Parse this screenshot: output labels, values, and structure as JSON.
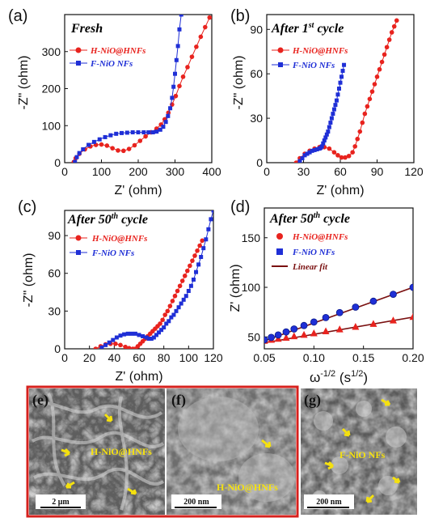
{
  "colors": {
    "red": "#e8231e",
    "blue": "#1f2fd6",
    "fit": "#7a1010",
    "sem_frame": "#d6211d",
    "arrow": "#f5e10f"
  },
  "chart_data": [
    {
      "type": "line",
      "panel_letter": "(a)",
      "condition": "Fresh",
      "ylabel": "-Z\" (ohm)",
      "xlabel": "Z' (ohm)",
      "xlim": [
        0,
        400
      ],
      "ylim": [
        0,
        400
      ],
      "xticks": [
        "0",
        "100",
        "200",
        "300",
        "400"
      ],
      "yticks": [
        "0",
        "100",
        "200",
        "300"
      ],
      "series": [
        {
          "name": "H-NiO@HNFs",
          "color": "red",
          "marker": "circle",
          "points": [
            [
              25,
              2
            ],
            [
              30,
              12
            ],
            [
              40,
              24
            ],
            [
              55,
              36
            ],
            [
              70,
              44
            ],
            [
              85,
              48
            ],
            [
              100,
              49
            ],
            [
              115,
              46
            ],
            [
              130,
              39
            ],
            [
              145,
              33
            ],
            [
              160,
              32
            ],
            [
              175,
              37
            ],
            [
              190,
              47
            ],
            [
              205,
              59
            ],
            [
              220,
              71
            ],
            [
              235,
              82
            ],
            [
              250,
              92
            ],
            [
              262,
              103
            ],
            [
              272,
              117
            ],
            [
              282,
              135
            ],
            [
              292,
              157
            ],
            [
              302,
              180
            ],
            [
              312,
              207
            ],
            [
              322,
              232
            ],
            [
              334,
              258
            ],
            [
              346,
              286
            ],
            [
              358,
              313
            ],
            [
              370,
              340
            ],
            [
              382,
              366
            ],
            [
              394,
              392
            ]
          ]
        },
        {
          "name": "F-NiO NFs",
          "color": "blue",
          "marker": "square",
          "points": [
            [
              28,
              2
            ],
            [
              33,
              15
            ],
            [
              40,
              26
            ],
            [
              50,
              36
            ],
            [
              65,
              48
            ],
            [
              80,
              56
            ],
            [
              95,
              63
            ],
            [
              110,
              69
            ],
            [
              125,
              74
            ],
            [
              140,
              78
            ],
            [
              155,
              80
            ],
            [
              170,
              81
            ],
            [
              185,
              82
            ],
            [
              200,
              82
            ],
            [
              215,
              82
            ],
            [
              228,
              82
            ],
            [
              240,
              82
            ],
            [
              250,
              84
            ],
            [
              260,
              89
            ],
            [
              268,
              97
            ],
            [
              275,
              110
            ],
            [
              281,
              126
            ],
            [
              287,
              147
            ],
            [
              292,
              175
            ],
            [
              296,
              205
            ],
            [
              300,
              240
            ],
            [
              304,
              277
            ],
            [
              308,
              315
            ],
            [
              312,
              360
            ],
            [
              317,
              400
            ]
          ]
        }
      ]
    },
    {
      "type": "line",
      "panel_letter": "(b)",
      "condition_main": "After 1",
      "condition_sup": "st",
      "condition_tail": " cycle",
      "ylabel": "-Z\" (ohm)",
      "xlabel": "Z' (ohm)",
      "xlim": [
        0,
        120
      ],
      "ylim": [
        0,
        100
      ],
      "xticks": [
        "0",
        "30",
        "60",
        "90",
        "120"
      ],
      "yticks": [
        "0",
        "30",
        "60",
        "90"
      ],
      "series": [
        {
          "name": "H-NiO@HNFs",
          "color": "red",
          "marker": "circle",
          "points": [
            [
              24,
              0
            ],
            [
              27,
              3
            ],
            [
              31,
              6
            ],
            [
              35,
              8
            ],
            [
              39,
              9.5
            ],
            [
              43,
              10.5
            ],
            [
              47,
              10.5
            ],
            [
              51,
              9.5
            ],
            [
              55,
              7
            ],
            [
              58,
              5
            ],
            [
              61,
              3.5
            ],
            [
              64,
              3.5
            ],
            [
              67,
              4.5
            ],
            [
              70,
              7
            ],
            [
              72,
              11
            ],
            [
              74,
              16
            ],
            [
              76,
              21
            ],
            [
              78,
              27
            ],
            [
              80,
              33
            ],
            [
              82,
              38
            ],
            [
              84,
              43
            ],
            [
              86,
              48
            ],
            [
              88,
              53
            ],
            [
              90,
              58
            ],
            [
              92,
              63
            ],
            [
              94,
              68
            ],
            [
              96,
              73
            ],
            [
              98,
              78
            ],
            [
              100,
              83
            ],
            [
              102,
              88
            ],
            [
              104,
              92
            ],
            [
              106,
              96
            ]
          ]
        },
        {
          "name": "F-NiO NFs",
          "color": "blue",
          "marker": "square",
          "points": [
            [
              27,
              1
            ],
            [
              29,
              3
            ],
            [
              31,
              5
            ],
            [
              33,
              6
            ],
            [
              35,
              7
            ],
            [
              37,
              8
            ],
            [
              39,
              8.5
            ],
            [
              41,
              9
            ],
            [
              43,
              9.5
            ],
            [
              44,
              10
            ],
            [
              45,
              11
            ],
            [
              46,
              13
            ],
            [
              47,
              15
            ],
            [
              48,
              17
            ],
            [
              49,
              19
            ],
            [
              50,
              21
            ],
            [
              51,
              24
            ],
            [
              52,
              27
            ],
            [
              53,
              30
            ],
            [
              54,
              33
            ],
            [
              55,
              36
            ],
            [
              56,
              39
            ],
            [
              57,
              42
            ],
            [
              58,
              46
            ],
            [
              59,
              50
            ],
            [
              60,
              54
            ],
            [
              61,
              58
            ],
            [
              62,
              62
            ],
            [
              63,
              66
            ]
          ]
        }
      ]
    },
    {
      "type": "line",
      "panel_letter": "(c)",
      "condition_main": "After 50",
      "condition_sup": "th",
      "condition_tail": " cycle",
      "ylabel": "-Z\" (ohm)",
      "xlabel": "Z' (ohm)",
      "xlim": [
        0,
        120
      ],
      "ylim": [
        0,
        110
      ],
      "xticks": [
        "0",
        "20",
        "40",
        "60",
        "80",
        "100",
        "120"
      ],
      "yticks": [
        "0",
        "30",
        "60",
        "90"
      ],
      "series": [
        {
          "name": "H-NiO@HNFs",
          "color": "red",
          "marker": "circle",
          "points": [
            [
              25,
              0
            ],
            [
              29,
              2
            ],
            [
              33,
              3.5
            ],
            [
              37,
              4
            ],
            [
              41,
              4
            ],
            [
              45,
              3
            ],
            [
              49,
              1.5
            ],
            [
              52,
              0.5
            ],
            [
              55,
              0
            ],
            [
              57,
              0
            ],
            [
              59,
              2
            ],
            [
              61,
              4
            ],
            [
              63,
              6
            ],
            [
              65,
              8
            ],
            [
              67,
              10
            ],
            [
              69,
              12
            ],
            [
              71,
              14
            ],
            [
              73,
              16
            ],
            [
              75,
              18
            ],
            [
              77,
              20
            ],
            [
              79,
              23
            ],
            [
              81,
              27
            ],
            [
              83,
              30
            ],
            [
              85,
              34
            ],
            [
              87,
              38
            ],
            [
              89,
              42
            ],
            [
              91,
              46
            ],
            [
              93,
              50
            ],
            [
              95,
              54
            ],
            [
              97,
              58
            ],
            [
              99,
              62
            ],
            [
              101,
              66
            ],
            [
              103,
              70
            ],
            [
              105,
              74
            ],
            [
              107,
              78
            ],
            [
              109,
              82
            ],
            [
              111,
              86
            ]
          ]
        },
        {
          "name": "F-NiO NFs",
          "color": "blue",
          "marker": "square",
          "points": [
            [
              30,
              1
            ],
            [
              33,
              3
            ],
            [
              36,
              5
            ],
            [
              39,
              7
            ],
            [
              42,
              9
            ],
            [
              45,
              10.5
            ],
            [
              48,
              11.5
            ],
            [
              51,
              12
            ],
            [
              54,
              12
            ],
            [
              57,
              12
            ],
            [
              60,
              11
            ],
            [
              63,
              10
            ],
            [
              66,
              9
            ],
            [
              68,
              8
            ],
            [
              70,
              8
            ],
            [
              72,
              9
            ],
            [
              74,
              11
            ],
            [
              76,
              13
            ],
            [
              78,
              15
            ],
            [
              80,
              17
            ],
            [
              82,
              20
            ],
            [
              84,
              22
            ],
            [
              86,
              25
            ],
            [
              88,
              27
            ],
            [
              90,
              30
            ],
            [
              92,
              33
            ],
            [
              94,
              36
            ],
            [
              96,
              39
            ],
            [
              98,
              42
            ],
            [
              100,
              46
            ],
            [
              102,
              50
            ],
            [
              104,
              55
            ],
            [
              106,
              61
            ],
            [
              108,
              67
            ],
            [
              110,
              73
            ],
            [
              112,
              80
            ],
            [
              114,
              87
            ],
            [
              116,
              95
            ],
            [
              118,
              103
            ],
            [
              120,
              110
            ]
          ]
        }
      ]
    },
    {
      "type": "scatter",
      "panel_letter": "(d)",
      "condition_main": "After 50",
      "condition_sup": "th",
      "condition_tail": " cycle",
      "ylabel": "Z' (ohm)",
      "xlabel_main": "ω",
      "xlabel_sup1": "-1/2",
      "xlabel_mid": " (s",
      "xlabel_sup2": "1/2",
      "xlabel_end": ")",
      "xlim": [
        0.05,
        0.2
      ],
      "ylim": [
        38,
        180
      ],
      "xticks": [
        "0.05",
        "0.10",
        "0.15",
        "0.20"
      ],
      "yticks": [
        "50",
        "100",
        "150"
      ],
      "series": [
        {
          "name": "H-NiO@HNFs",
          "color": "red",
          "marker": "triangle",
          "x": [
            0.05,
            0.057,
            0.064,
            0.072,
            0.08,
            0.09,
            0.1,
            0.112,
            0.126,
            0.142,
            0.16,
            0.18,
            0.2
          ],
          "y": [
            46,
            47,
            48,
            49,
            50.5,
            52,
            53.5,
            55.5,
            57.5,
            60,
            63,
            66.5,
            70
          ]
        },
        {
          "name": "F-NiO NFs",
          "color": "blue",
          "marker": "circle",
          "x": [
            0.05,
            0.057,
            0.064,
            0.072,
            0.08,
            0.09,
            0.1,
            0.112,
            0.126,
            0.142,
            0.16,
            0.18,
            0.2
          ],
          "y": [
            47,
            49.5,
            52,
            55,
            58,
            61.5,
            65,
            69.5,
            74.5,
            80,
            86,
            93,
            100
          ]
        }
      ],
      "legend_markers": [
        "circle",
        "square"
      ],
      "fit_label": "Linear fit",
      "fit_lines": [
        {
          "x": [
            0.05,
            0.2
          ],
          "y": [
            44,
            70
          ]
        },
        {
          "x": [
            0.05,
            0.2
          ],
          "y": [
            46,
            100
          ]
        }
      ]
    }
  ],
  "sem": {
    "e": {
      "letter": "(e)",
      "label": "H-NiO@HNFs",
      "scale": "2 μm"
    },
    "f": {
      "letter": "(f)",
      "label": "H-NiO@HNFs",
      "scale": "200 nm"
    },
    "g": {
      "letter": "(g)",
      "label": "F-NiO NFs",
      "scale": "200 nm"
    }
  }
}
